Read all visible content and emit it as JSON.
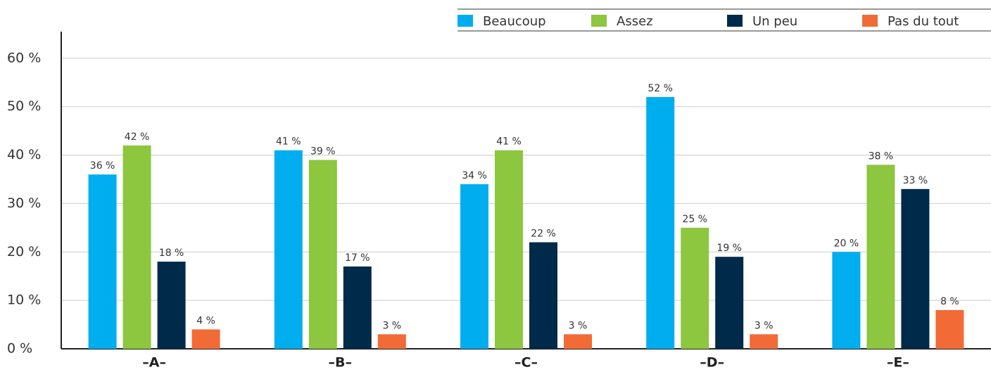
{
  "chart_data": {
    "type": "bar",
    "categories": [
      "–A–",
      "–B–",
      "–C–",
      "–D–",
      "–E–"
    ],
    "series": [
      {
        "name": "Beaucoup",
        "color": "#00aeef",
        "values": [
          36,
          41,
          34,
          52,
          20
        ],
        "value_labels": [
          "36 %",
          "41 %",
          "34 %",
          "52 %",
          "20 %"
        ]
      },
      {
        "name": "Assez",
        "color": "#8dc63f",
        "values": [
          42,
          39,
          41,
          25,
          38
        ],
        "value_labels": [
          "42 %",
          "39 %",
          "41 %",
          "25 %",
          "38 %"
        ]
      },
      {
        "name": "Un peu",
        "color": "#002a4a",
        "values": [
          18,
          17,
          22,
          19,
          33
        ],
        "value_labels": [
          "18 %",
          "17 %",
          "22 %",
          "19 %",
          "33 %"
        ]
      },
      {
        "name": "Pas du tout",
        "color": "#f26a36",
        "values": [
          4,
          3,
          3,
          3,
          8
        ],
        "value_labels": [
          "4 %",
          "3 %",
          "3 %",
          "3 %",
          "8 %"
        ]
      }
    ],
    "ylim": [
      0,
      65.5
    ],
    "yticks": [
      {
        "value": 0,
        "label": "0 %"
      },
      {
        "value": 10,
        "label": "10 %"
      },
      {
        "value": 20,
        "label": "20 %"
      },
      {
        "value": 30,
        "label": "30 %"
      },
      {
        "value": 40,
        "label": "40 %"
      },
      {
        "value": 50,
        "label": "50 %"
      },
      {
        "value": 60,
        "label": "60 %"
      }
    ],
    "grid": true,
    "legend": "top-right"
  }
}
